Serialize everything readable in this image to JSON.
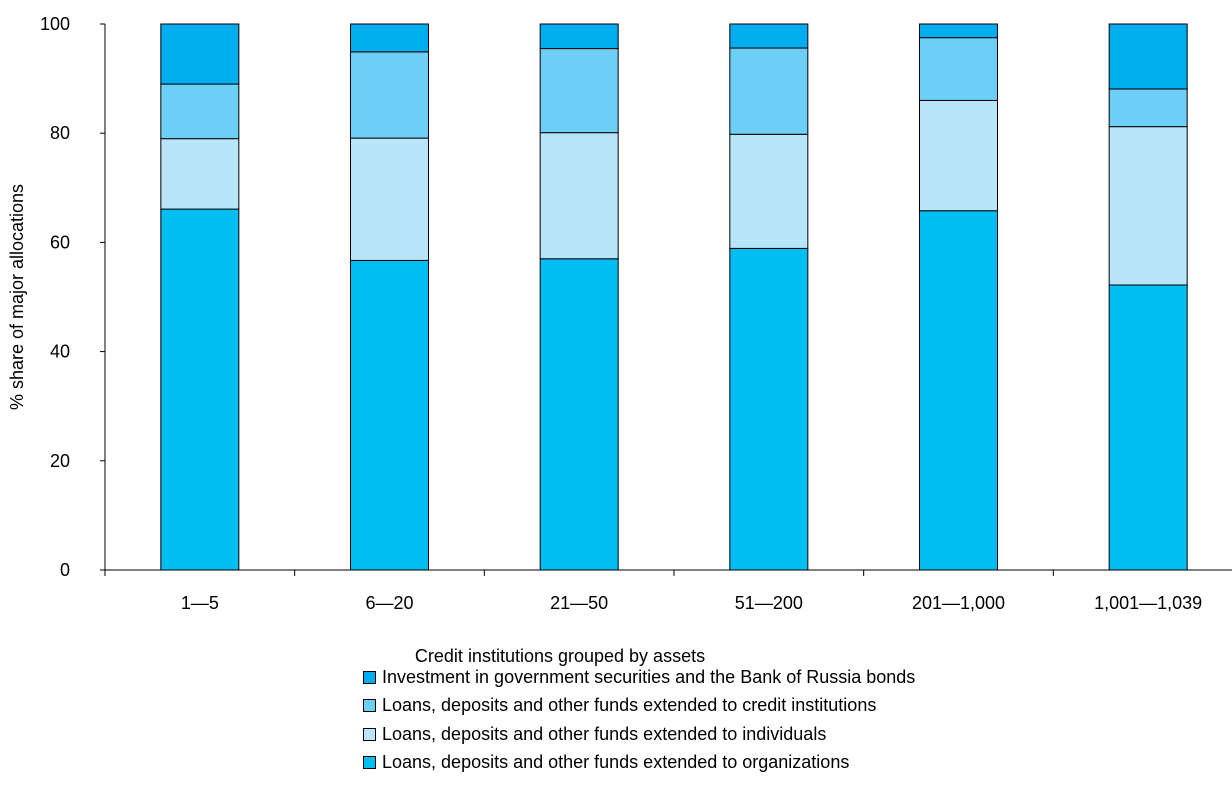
{
  "chart_data": {
    "type": "bar",
    "stacked": true,
    "xlabel": "Credit institutions grouped by assets",
    "ylabel": "% share of major allocations",
    "ylim": [
      0,
      100
    ],
    "yticks": [
      "0",
      "20",
      "40",
      "60",
      "80",
      "100"
    ],
    "ytick_values": [
      0,
      20,
      40,
      60,
      80,
      100
    ],
    "categories": [
      "1—5",
      "6—20",
      "21—50",
      "51—200",
      "201—1,000",
      "1,001—1,039"
    ],
    "series": [
      {
        "name": "Loans, deposits and other funds extended to organizations",
        "color": "#00bdf2",
        "values": [
          66.1,
          56.7,
          57.0,
          58.9,
          65.8,
          52.2
        ]
      },
      {
        "name": "Loans, deposits and other funds extended to individuals",
        "color": "#b9e5fb",
        "values": [
          12.9,
          22.4,
          23.1,
          20.9,
          20.2,
          29.0
        ]
      },
      {
        "name": "Loans, deposits and other funds extended to credit institutions",
        "color": "#6dcff6",
        "values": [
          10.0,
          15.8,
          15.4,
          15.8,
          11.5,
          6.9
        ]
      },
      {
        "name": "Investment in government securities and the Bank of Russia bonds",
        "color": "#00aeef",
        "values": [
          11.0,
          5.1,
          4.5,
          4.4,
          2.5,
          11.9
        ]
      }
    ],
    "legend_order": [
      3,
      2,
      1,
      0
    ],
    "grid": false,
    "legend_position": "bottom"
  }
}
